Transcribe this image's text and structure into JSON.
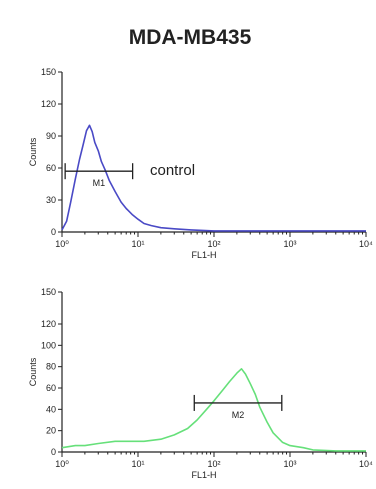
{
  "title": "MDA-MB435",
  "colors": {
    "control": "#4a4ac6",
    "sample": "#66e07a"
  },
  "chart_data": [
    {
      "type": "line",
      "xlabel": "FL1-H",
      "ylabel": "Counts",
      "xscale": "log",
      "xlim": [
        1,
        10000
      ],
      "ylim": [
        0,
        150
      ],
      "x_ticks": [
        1,
        10,
        100,
        1000,
        10000
      ],
      "x_tick_labels": [
        "10⁰",
        "10¹",
        "10²",
        "10³",
        "10⁴"
      ],
      "y_ticks": [
        0,
        30,
        60,
        90,
        120,
        150
      ],
      "y_tick_labels": [
        "0",
        "30",
        "60",
        "90",
        "120",
        "150"
      ],
      "annotation": "control",
      "gate": {
        "label": "M1",
        "x_start": 1.1,
        "x_end": 8.5,
        "y": 57
      },
      "series": [
        {
          "color": "#4a4ac6",
          "x": [
            1,
            1.15,
            1.3,
            1.5,
            1.7,
            1.9,
            2.1,
            2.3,
            2.5,
            2.7,
            3.0,
            3.3,
            3.7,
            4.2,
            5,
            6,
            7,
            8.5,
            10,
            12,
            15,
            20,
            30,
            50,
            100,
            300,
            1000,
            10000
          ],
          "y": [
            2,
            10,
            28,
            50,
            68,
            82,
            95,
            100,
            94,
            84,
            76,
            66,
            58,
            48,
            38,
            28,
            22,
            16,
            12,
            8,
            6,
            4,
            3,
            2,
            1,
            1,
            1,
            1
          ]
        }
      ]
    },
    {
      "type": "line",
      "xlabel": "FL1-H",
      "ylabel": "Counts",
      "xscale": "log",
      "xlim": [
        1,
        10000
      ],
      "ylim": [
        0,
        150
      ],
      "x_ticks": [
        1,
        10,
        100,
        1000,
        10000
      ],
      "x_tick_labels": [
        "10⁰",
        "10¹",
        "10²",
        "10³",
        "10⁴"
      ],
      "y_ticks": [
        0,
        20,
        40,
        60,
        80,
        100,
        120,
        150
      ],
      "y_tick_labels": [
        "0",
        "20",
        "40",
        "60",
        "80",
        "100",
        "120",
        "150"
      ],
      "gate": {
        "label": "M2",
        "x_start": 55,
        "x_end": 780,
        "y": 46
      },
      "series": [
        {
          "color": "#66e07a",
          "x": [
            1,
            1.5,
            2,
            3,
            5,
            8,
            12,
            20,
            30,
            45,
            60,
            80,
            100,
            130,
            160,
            200,
            230,
            260,
            300,
            350,
            400,
            500,
            600,
            800,
            1000,
            1500,
            2000,
            4000,
            10000
          ],
          "y": [
            4,
            6,
            6,
            8,
            10,
            10,
            10,
            12,
            16,
            22,
            30,
            40,
            48,
            58,
            66,
            74,
            78,
            73,
            64,
            54,
            42,
            28,
            18,
            9,
            6,
            4,
            2,
            1,
            1
          ]
        }
      ]
    }
  ]
}
